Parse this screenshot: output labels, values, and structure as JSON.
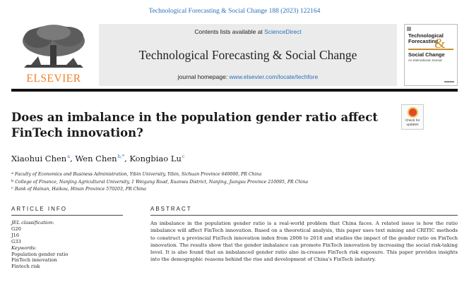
{
  "citation": "Technological Forecasting & Social Change 188 (2023) 122164",
  "masthead": {
    "publisher_logo": "ELSEVIER",
    "contents_prefix": "Contents lists available at ",
    "contents_link": "ScienceDirect",
    "journal_title": "Technological Forecasting & Social Change",
    "homepage_prefix": "journal homepage: ",
    "homepage_link": "www.elsevier.com/locate/techfore",
    "cover": {
      "title_line1": "Technological",
      "title_line2": "Forecasting",
      "amp": "&",
      "title_line3": "Social Change",
      "subtitle": "An International Journal"
    }
  },
  "crossmark": {
    "label_line1": "Check for",
    "label_line2": "updates"
  },
  "article": {
    "title_line1": "Does an imbalance in the population gender ratio affect",
    "title_line2": "FinTech innovation?",
    "authors": [
      {
        "name": "Xiaohui Chen",
        "mark": "a"
      },
      {
        "name": "Wen Chen",
        "mark": "b,*"
      },
      {
        "name": "Kongbiao Lu",
        "mark": "c"
      }
    ],
    "affiliations": [
      {
        "mark": "a",
        "text": "Faculty of Economics and Business Administration, Yibin University, Yibin, Sichuan Province 640000, PR China"
      },
      {
        "mark": "b",
        "text": "College of Finance, Nanjing Agricultural University, 1 Weigang Road, Xuanwu District, Nanjing, Jiangsu Province 210095, PR China"
      },
      {
        "mark": "c",
        "text": "Bank of Hainan, Haikou, Hinan Province 570203, PR China"
      }
    ]
  },
  "article_info": {
    "heading": "ARTICLE INFO",
    "jel_label": "JEL classification:",
    "jel_codes": [
      "G20",
      "J16",
      "G33"
    ],
    "keywords_label": "Keywords:",
    "keywords": [
      "Population gender ratio",
      "FinTech innovation",
      "Fintech risk"
    ]
  },
  "abstract": {
    "heading": "ABSTRACT",
    "text": "An imbalance in the population gender ratio is a real-world problem that China faces. A related issue is how the ratio imbalance will affect FinTech innovation. Based on a theoretical analysis, this paper uses text mining and CRITIC methods to construct a provincial FinTech innovation index from 2008 to 2018 and studies the impact of the gender ratio on FinTech innovation. The results show that the gender imbalance can promote FinTech innovation by increasing the social risk-taking level. It is also found that an imbalanced gender ratio also in-creases FinTech risk exposure. This paper provides insights into the demographic reasons behind the rise and development of China's FinTech industry."
  }
}
